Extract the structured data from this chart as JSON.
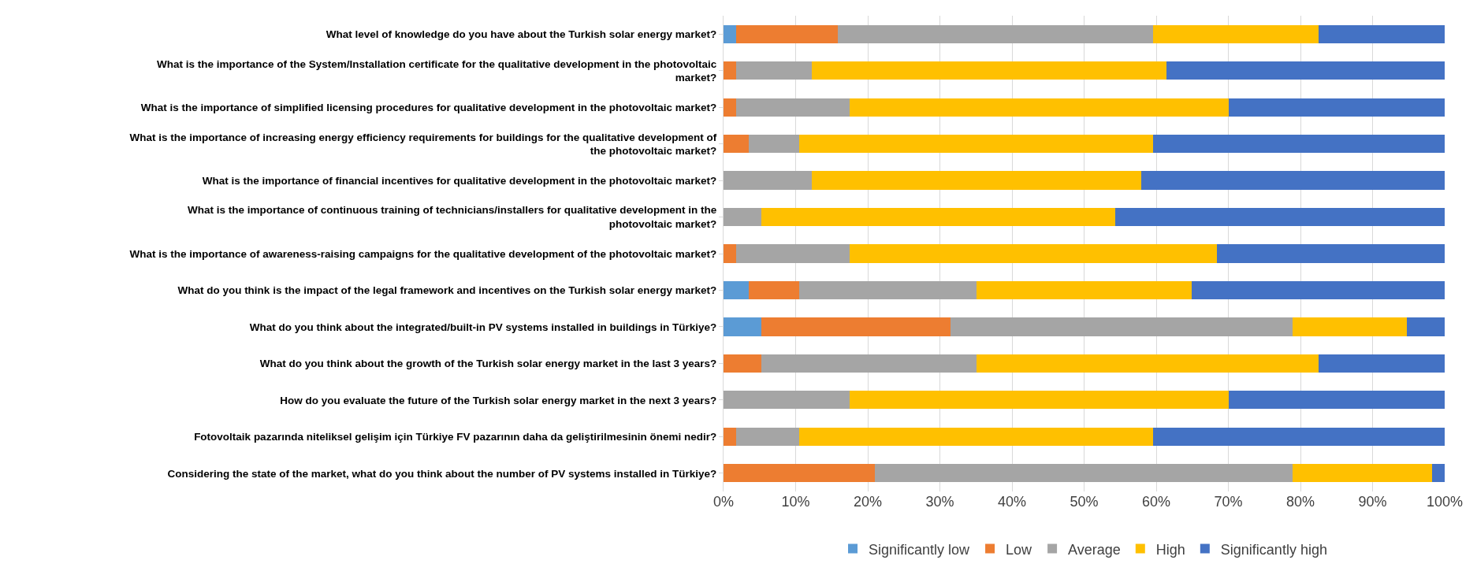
{
  "chart_data": {
    "type": "bar",
    "orientation": "horizontal",
    "stacked": true,
    "categories": [
      "What level of knowledge do you have about the Turkish solar energy market?",
      "What is the importance of the System/Installation certificate for the qualitative development in the photovoltaic market?",
      "What is the importance of simplified licensing procedures for qualitative development in the photovoltaic market?",
      "What is the importance of increasing energy efficiency requirements for buildings for the qualitative development of the photovoltaic market?",
      "What is the importance of financial incentives for qualitative development in the photovoltaic market?",
      "What is the importance of continuous training of technicians/installers for qualitative development in the photovoltaic market?",
      "What is the importance of awareness-raising campaigns for the qualitative development of the photovoltaic market?",
      "What do you think is the impact of the legal framework and incentives on the Turkish solar energy market?",
      "What do you think about the integrated/built-in PV systems installed in buildings in Türkiye?",
      "What do you think about the growth of the Turkish solar energy market in the last 3 years?",
      "How do you evaluate the future of the Turkish solar energy market in the next 3 years?",
      "Fotovoltaik pazarında niteliksel gelişim için Türkiye FV pazarının daha da geliştirilmesinin önemi nedir?",
      "Considering the state of the market, what do you think about the number of PV systems installed in Türkiye?"
    ],
    "series": [
      {
        "name": "Significantly low",
        "color": "#5b9bd5",
        "values": [
          1.7,
          0,
          0,
          0,
          0,
          0,
          0,
          3.5,
          5.2,
          0,
          0,
          0,
          0
        ]
      },
      {
        "name": "Low",
        "color": "#ed7d31",
        "values": [
          14.1,
          1.7,
          1.7,
          3.5,
          0,
          0,
          1.7,
          7.0,
          26.3,
          5.2,
          0,
          1.7,
          21.0
        ]
      },
      {
        "name": "Average",
        "color": "#a5a5a5",
        "values": [
          43.8,
          10.5,
          15.8,
          7.0,
          12.2,
          5.2,
          15.8,
          24.6,
          47.4,
          29.9,
          17.5,
          8.8,
          57.9
        ]
      },
      {
        "name": "High",
        "color": "#ffc000",
        "values": [
          22.9,
          49.2,
          52.6,
          49.1,
          45.7,
          49.1,
          50.9,
          29.8,
          15.8,
          47.4,
          52.6,
          49.1,
          19.4
        ]
      },
      {
        "name": "Significantly high",
        "color": "#4472c4",
        "values": [
          17.5,
          38.6,
          29.9,
          40.4,
          42.1,
          45.7,
          31.6,
          35.1,
          5.3,
          17.5,
          29.9,
          40.4,
          1.7
        ]
      }
    ],
    "xlim": [
      0,
      100
    ],
    "xticks": [
      {
        "value": 0,
        "label": "0%"
      },
      {
        "value": 10,
        "label": "10%"
      },
      {
        "value": 20,
        "label": "20%"
      },
      {
        "value": 30,
        "label": "30%"
      },
      {
        "value": 40,
        "label": "40%"
      },
      {
        "value": 50,
        "label": "50%"
      },
      {
        "value": 60,
        "label": "60%"
      },
      {
        "value": 70,
        "label": "70%"
      },
      {
        "value": 80,
        "label": "80%"
      },
      {
        "value": 90,
        "label": "90%"
      },
      {
        "value": 100,
        "label": "100%"
      }
    ],
    "grid": "x",
    "legend": "bottom"
  }
}
